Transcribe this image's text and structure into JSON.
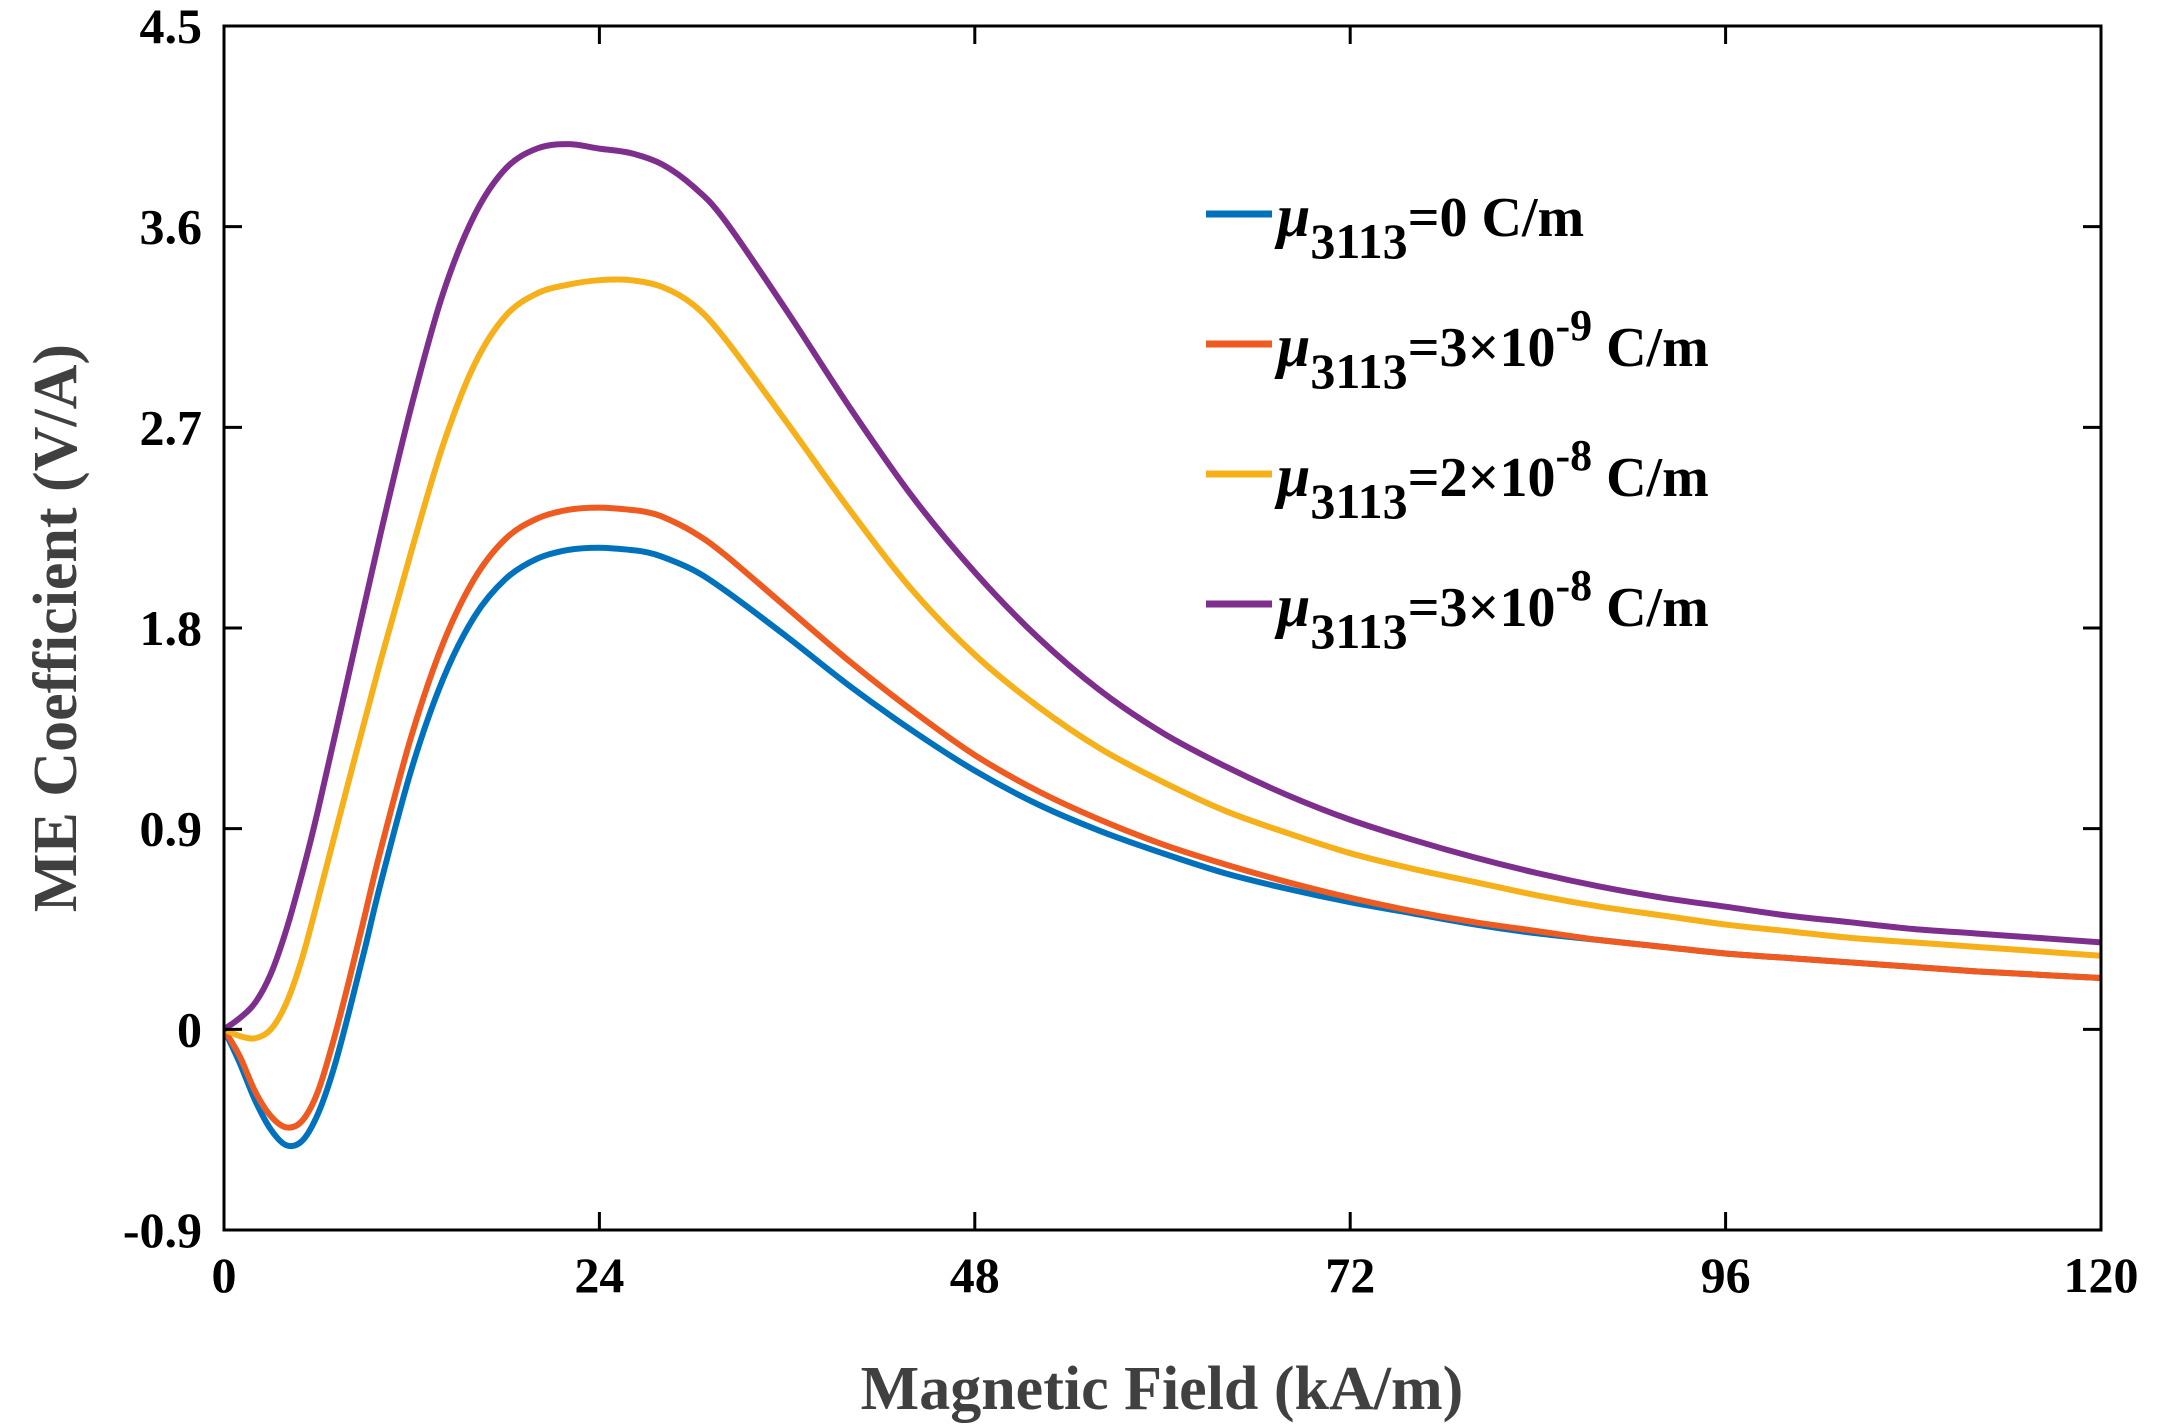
{
  "chart_data": {
    "type": "line",
    "title": "",
    "xlabel": "Magnetic Field (kA/m)",
    "ylabel": "ME Coefficient (V/A)",
    "xlim": [
      0,
      120
    ],
    "ylim": [
      -0.9,
      4.5
    ],
    "xticks": [
      0,
      24,
      48,
      72,
      96,
      120
    ],
    "xtick_labels": [
      "0",
      "24",
      "48",
      "72",
      "96",
      "120"
    ],
    "yticks": [
      -0.9,
      0,
      0.9,
      1.8,
      2.7,
      3.6,
      4.5
    ],
    "ytick_labels": [
      "-0.9",
      "0",
      "0.9",
      "1.8",
      "2.7",
      "3.6",
      "4.5"
    ],
    "grid": false,
    "legend_position": "top-right",
    "series": [
      {
        "name": "μ3113=0 C/m",
        "symbol": "μ",
        "subscript": "3113",
        "value_prefix": "=0",
        "exponent": "",
        "unit": " C/m",
        "color": "#0072BD",
        "x": [
          0,
          1,
          2,
          3,
          4,
          5,
          6,
          7,
          8,
          9,
          10,
          12,
          14,
          16,
          18,
          20,
          22,
          24,
          26,
          27,
          28,
          30,
          32,
          36,
          40,
          44,
          48,
          52,
          56,
          60,
          64,
          68,
          72,
          76,
          80,
          84,
          88,
          92,
          96,
          100,
          104,
          108,
          112,
          116,
          120
        ],
        "y": [
          0,
          -0.15,
          -0.32,
          -0.45,
          -0.52,
          -0.5,
          -0.38,
          -0.18,
          0.08,
          0.36,
          0.65,
          1.17,
          1.57,
          1.85,
          2.02,
          2.11,
          2.15,
          2.16,
          2.15,
          2.14,
          2.12,
          2.06,
          1.97,
          1.76,
          1.54,
          1.34,
          1.16,
          1.01,
          0.89,
          0.79,
          0.7,
          0.63,
          0.57,
          0.52,
          0.47,
          0.43,
          0.4,
          0.37,
          0.34,
          0.32,
          0.3,
          0.28,
          0.26,
          0.245,
          0.23
        ]
      },
      {
        "name": "μ3113=3×10-9 C/m",
        "symbol": "μ",
        "subscript": "3113",
        "value_prefix": "=3×10",
        "exponent": "-9",
        "unit": " C/m",
        "color": "#EE5A1F",
        "x": [
          0,
          1,
          2,
          3,
          4,
          5,
          6,
          7,
          8,
          9,
          10,
          12,
          14,
          16,
          18,
          20,
          22,
          24,
          26,
          27,
          28,
          30,
          32,
          36,
          40,
          44,
          48,
          52,
          56,
          60,
          64,
          68,
          72,
          76,
          80,
          84,
          88,
          92,
          96,
          100,
          104,
          108,
          112,
          116,
          120
        ],
        "y": [
          0,
          -0.12,
          -0.28,
          -0.39,
          -0.44,
          -0.41,
          -0.28,
          -0.05,
          0.22,
          0.51,
          0.8,
          1.32,
          1.73,
          2.02,
          2.2,
          2.29,
          2.33,
          2.34,
          2.33,
          2.32,
          2.3,
          2.23,
          2.13,
          1.89,
          1.65,
          1.43,
          1.23,
          1.07,
          0.94,
          0.83,
          0.74,
          0.66,
          0.59,
          0.53,
          0.48,
          0.44,
          0.4,
          0.37,
          0.34,
          0.32,
          0.3,
          0.28,
          0.26,
          0.245,
          0.23
        ]
      },
      {
        "name": "μ3113=2×10-8 C/m",
        "symbol": "μ",
        "subscript": "3113",
        "value_prefix": "=2×10",
        "exponent": "-8",
        "unit": " C/m",
        "color": "#F5B01A",
        "x": [
          0,
          1,
          2,
          3,
          4,
          5,
          6,
          8,
          10,
          12,
          14,
          16,
          18,
          20,
          22,
          24,
          26,
          28,
          30,
          32,
          36,
          40,
          44,
          48,
          52,
          56,
          60,
          64,
          68,
          72,
          76,
          80,
          84,
          88,
          92,
          96,
          100,
          104,
          108,
          112,
          116,
          120
        ],
        "y": [
          0,
          -0.03,
          -0.04,
          0.0,
          0.12,
          0.32,
          0.58,
          1.12,
          1.65,
          2.15,
          2.62,
          2.98,
          3.2,
          3.3,
          3.34,
          3.36,
          3.36,
          3.33,
          3.25,
          3.1,
          2.72,
          2.33,
          1.97,
          1.68,
          1.45,
          1.26,
          1.11,
          0.98,
          0.88,
          0.79,
          0.72,
          0.66,
          0.6,
          0.55,
          0.51,
          0.47,
          0.44,
          0.41,
          0.39,
          0.37,
          0.35,
          0.33
        ]
      },
      {
        "name": "μ3113=3×10-8 C/m",
        "symbol": "μ",
        "subscript": "3113",
        "value_prefix": "=3×10",
        "exponent": "-8",
        "unit": " C/m",
        "color": "#7E2F8E",
        "x": [
          0,
          1,
          2,
          3,
          4,
          5,
          6,
          8,
          10,
          12,
          14,
          16,
          18,
          20,
          22,
          24,
          26,
          28,
          30,
          32,
          36,
          40,
          44,
          48,
          52,
          56,
          60,
          64,
          68,
          72,
          76,
          80,
          84,
          88,
          92,
          96,
          100,
          104,
          108,
          112,
          116,
          120
        ],
        "y": [
          0,
          0.05,
          0.12,
          0.25,
          0.45,
          0.7,
          0.98,
          1.6,
          2.22,
          2.8,
          3.3,
          3.65,
          3.86,
          3.95,
          3.97,
          3.95,
          3.93,
          3.88,
          3.78,
          3.63,
          3.22,
          2.79,
          2.39,
          2.05,
          1.76,
          1.52,
          1.33,
          1.18,
          1.05,
          0.94,
          0.85,
          0.77,
          0.7,
          0.64,
          0.59,
          0.55,
          0.51,
          0.48,
          0.45,
          0.43,
          0.41,
          0.39
        ]
      }
    ]
  }
}
